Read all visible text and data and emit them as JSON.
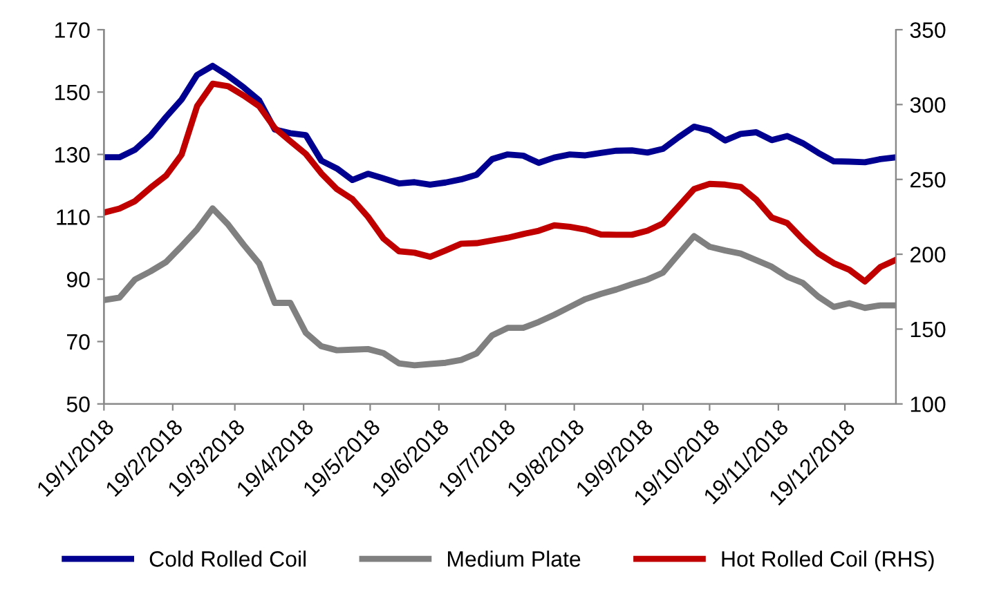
{
  "chart_data": {
    "type": "line",
    "x": [
      "2018-01-19",
      "2018-01-26",
      "2018-02-02",
      "2018-02-09",
      "2018-02-16",
      "2018-02-23",
      "2018-03-02",
      "2018-03-09",
      "2018-03-16",
      "2018-03-23",
      "2018-03-30",
      "2018-04-06",
      "2018-04-13",
      "2018-04-20",
      "2018-04-27",
      "2018-05-04",
      "2018-05-11",
      "2018-05-18",
      "2018-05-25",
      "2018-06-01",
      "2018-06-08",
      "2018-06-15",
      "2018-06-22",
      "2018-06-29",
      "2018-07-06",
      "2018-07-13",
      "2018-07-20",
      "2018-07-27",
      "2018-08-03",
      "2018-08-10",
      "2018-08-17",
      "2018-08-24",
      "2018-08-31",
      "2018-09-07",
      "2018-09-14",
      "2018-09-21",
      "2018-09-28",
      "2018-10-05",
      "2018-10-12",
      "2018-10-19",
      "2018-10-26",
      "2018-11-02",
      "2018-11-09",
      "2018-11-16",
      "2018-11-23",
      "2018-11-30",
      "2018-12-07",
      "2018-12-14",
      "2018-12-21",
      "2018-12-28",
      "2019-01-04",
      "2019-01-11"
    ],
    "series": [
      {
        "name": "Cold Rolled Coil",
        "color": "#000090",
        "values": [
          129.1,
          129.1,
          131.5,
          136,
          142,
          147.6,
          155.5,
          158.4,
          155.2,
          151.5,
          147.3,
          138,
          136.8,
          136.2,
          128,
          125.5,
          121.8,
          123.8,
          122.3,
          120.7,
          121.1,
          120.3,
          121,
          122,
          123.5,
          128.5,
          130,
          129.6,
          127.3,
          129,
          130,
          129.7,
          130.5,
          131.2,
          131.3,
          130.6,
          131.8,
          135.5,
          138.9,
          137.7,
          134.5,
          136.6,
          137.1,
          134.6,
          135.9,
          133.6,
          130.5,
          127.8,
          127.7,
          127.5,
          128.5,
          129.1
        ]
      },
      {
        "name": "Medium Plate",
        "color": "#808080",
        "values": [
          83.3,
          84.1,
          89.9,
          92.5,
          95.5,
          100.6,
          106,
          112.7,
          107.5,
          101,
          95,
          82.4,
          82.4,
          72.8,
          68.5,
          67.2,
          67.4,
          67.6,
          66.3,
          63,
          62.4,
          62.8,
          63.2,
          64.1,
          66.2,
          72,
          74.4,
          74.4,
          76.3,
          78.6,
          81.1,
          83.6,
          85.3,
          86.7,
          88.4,
          89.9,
          92.1,
          98,
          103.8,
          100.4,
          99.2,
          98.2,
          96.1,
          94,
          90.8,
          88.8,
          84.4,
          81.1,
          82.3,
          80.8,
          81.6,
          81.6
        ]
      },
      {
        "name": "Hot Rolled Coil (RHS)",
        "color": "#c00000",
        "axis": "y2",
        "values": [
          227.8,
          230.5,
          235.5,
          244.4,
          252.5,
          266.5,
          299,
          313.9,
          312.2,
          306,
          298.8,
          284.3,
          275.5,
          267,
          254,
          243.5,
          236.8,
          225,
          210.5,
          202,
          201,
          198.3,
          202.5,
          207,
          207.4,
          209.2,
          211,
          213.5,
          215.7,
          219.3,
          218.3,
          216.5,
          213.2,
          213,
          213,
          215.7,
          220.6,
          232,
          243.5,
          247,
          246.5,
          245,
          236.5,
          224.5,
          220.8,
          210,
          200.5,
          194,
          189.6,
          181.8,
          191.5,
          196.3
        ]
      }
    ],
    "xlim": [
      "2018-01-19",
      "2019-01-11"
    ],
    "xticks": [
      {
        "value": "2018-01-19",
        "label": "19/1/2018"
      },
      {
        "value": "2018-02-19",
        "label": "19/2/2018"
      },
      {
        "value": "2018-03-19",
        "label": "19/3/2018"
      },
      {
        "value": "2018-04-19",
        "label": "19/4/2018"
      },
      {
        "value": "2018-05-19",
        "label": "19/5/2018"
      },
      {
        "value": "2018-06-19",
        "label": "19/6/2018"
      },
      {
        "value": "2018-07-19",
        "label": "19/7/2018"
      },
      {
        "value": "2018-08-19",
        "label": "19/8/2018"
      },
      {
        "value": "2018-09-19",
        "label": "19/9/2018"
      },
      {
        "value": "2018-10-19",
        "label": "19/10/2018"
      },
      {
        "value": "2018-11-19",
        "label": "19/11/2018"
      },
      {
        "value": "2018-12-19",
        "label": "19/12/2018"
      }
    ],
    "ylim": [
      50,
      170
    ],
    "yticks": [
      50,
      70,
      90,
      110,
      130,
      150,
      170
    ],
    "y2lim": [
      100,
      350
    ],
    "y2ticks": [
      100,
      150,
      200,
      250,
      300,
      350
    ],
    "grid": false,
    "legend": "bottom",
    "marker": "none",
    "line_style": "solid"
  }
}
